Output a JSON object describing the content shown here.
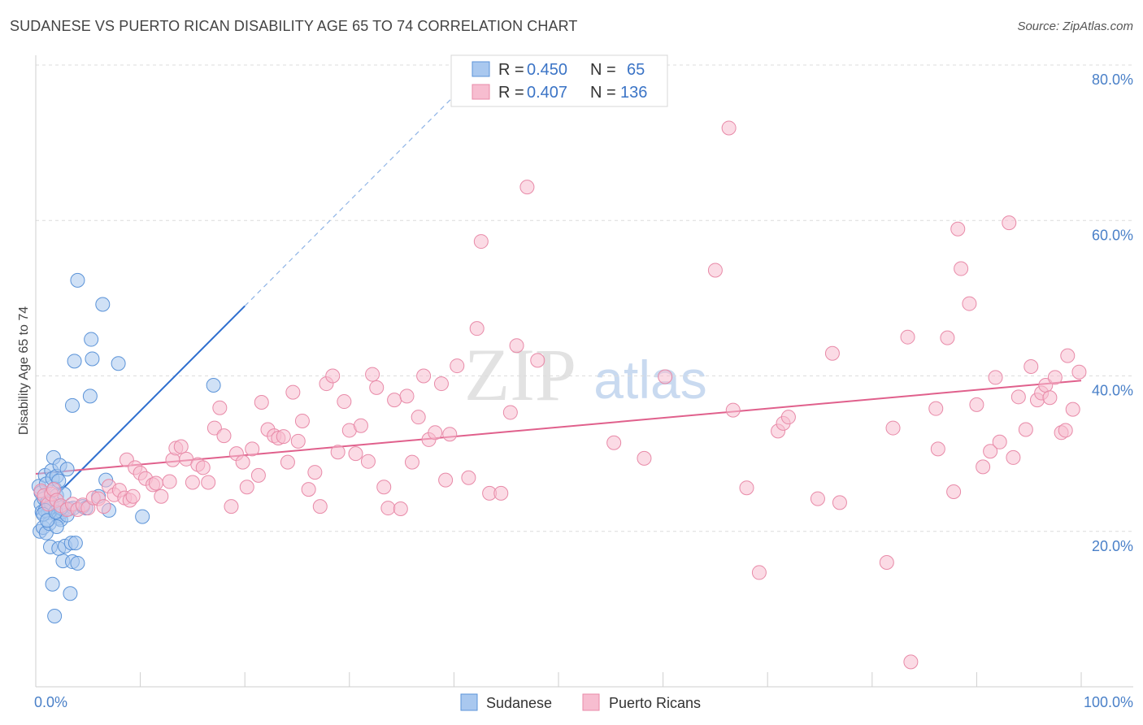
{
  "header": {
    "title": "SUDANESE VS PUERTO RICAN DISABILITY AGE 65 TO 74 CORRELATION CHART",
    "source": "Source: ZipAtlas.com"
  },
  "watermark": {
    "zip": "ZIP",
    "atlas": "atlas"
  },
  "colors": {
    "sudanese_fill": "#a9c8ef",
    "sudanese_stroke": "#5b93d8",
    "sudanese_line": "#2f6fcf",
    "puerto_fill": "#f7bdd0",
    "puerto_stroke": "#e88aa8",
    "puerto_line": "#e0608c",
    "tick_color": "#4a80c8",
    "grid": "#dcdcdc"
  },
  "legend_top": {
    "rows": [
      {
        "r_label": "R =",
        "r_value": "0.450",
        "n_label": "N =",
        "n_value": "65"
      },
      {
        "r_label": "R =",
        "r_value": "0.407",
        "n_label": "N =",
        "n_value": "136"
      }
    ]
  },
  "legend_bottom": {
    "items": [
      "Sudanese",
      "Puerto Ricans"
    ]
  },
  "chart_data": {
    "type": "scatter",
    "title": "SUDANESE VS PUERTO RICAN DISABILITY AGE 65 TO 74 CORRELATION CHART",
    "xlabel": "",
    "ylabel": "Disability Age 65 to 74",
    "xlim": [
      0,
      100
    ],
    "ylim": [
      0,
      80
    ],
    "x_tick_labels": [
      "0.0%",
      "100.0%"
    ],
    "y_ticks": [
      20,
      40,
      60,
      80
    ],
    "y_tick_labels": [
      "20.0%",
      "40.0%",
      "60.0%",
      "80.0%"
    ],
    "grid": true,
    "legend_position": "top-center",
    "series": [
      {
        "name": "Sudanese",
        "R": 0.45,
        "N": 65,
        "trend": {
          "x1": 0,
          "y1": 22.0,
          "x2": 20,
          "y2": 49.0,
          "dash_to_x": 40,
          "dash_to_y": 76.0
        },
        "points": [
          [
            0.3,
            25.8
          ],
          [
            0.5,
            25.0
          ],
          [
            0.5,
            23.5
          ],
          [
            0.6,
            22.5
          ],
          [
            0.8,
            24.2
          ],
          [
            0.9,
            27.2
          ],
          [
            1.0,
            26.1
          ],
          [
            1.1,
            23.7
          ],
          [
            1.2,
            22.4
          ],
          [
            1.3,
            23.1
          ],
          [
            0.4,
            20.0
          ],
          [
            0.7,
            20.5
          ],
          [
            1.0,
            19.8
          ],
          [
            1.4,
            18.0
          ],
          [
            1.5,
            27.8
          ],
          [
            1.6,
            26.8
          ],
          [
            1.8,
            25.5
          ],
          [
            2.0,
            24.6
          ],
          [
            2.1,
            22.0
          ],
          [
            2.2,
            21.7
          ],
          [
            1.7,
            29.5
          ],
          [
            2.0,
            27.1
          ],
          [
            2.2,
            26.5
          ],
          [
            2.3,
            28.5
          ],
          [
            2.5,
            22.5
          ],
          [
            2.6,
            22.8
          ],
          [
            2.7,
            24.8
          ],
          [
            2.4,
            21.5
          ],
          [
            2.6,
            16.2
          ],
          [
            2.2,
            17.8
          ],
          [
            2.8,
            18.1
          ],
          [
            3.0,
            28.0
          ],
          [
            3.2,
            22.9
          ],
          [
            3.4,
            18.5
          ],
          [
            3.6,
            23.0
          ],
          [
            3.5,
            16.1
          ],
          [
            3.3,
            12.0
          ],
          [
            1.6,
            13.2
          ],
          [
            1.8,
            9.1
          ],
          [
            4.0,
            15.9
          ],
          [
            3.8,
            18.5
          ],
          [
            1.3,
            21.0
          ],
          [
            2.0,
            20.6
          ],
          [
            1.5,
            23.5
          ],
          [
            0.9,
            22.7
          ],
          [
            0.7,
            22.2
          ],
          [
            1.1,
            21.4
          ],
          [
            3.0,
            22.1
          ],
          [
            2.4,
            23.0
          ],
          [
            1.9,
            22.5
          ],
          [
            3.5,
            36.2
          ],
          [
            5.2,
            37.4
          ],
          [
            3.7,
            41.9
          ],
          [
            5.4,
            42.2
          ],
          [
            5.3,
            44.7
          ],
          [
            7.9,
            41.6
          ],
          [
            6.4,
            49.2
          ],
          [
            4.0,
            52.3
          ],
          [
            6.7,
            26.6
          ],
          [
            7.0,
            22.7
          ],
          [
            10.2,
            21.9
          ],
          [
            17.0,
            38.8
          ],
          [
            4.5,
            23.2
          ],
          [
            6.0,
            24.5
          ],
          [
            4.8,
            23.0
          ]
        ]
      },
      {
        "name": "Puerto Ricans",
        "R": 0.407,
        "N": 136,
        "trend": {
          "x1": 0,
          "y1": 27.4,
          "x2": 100,
          "y2": 39.4
        },
        "points": [
          [
            0.5,
            25.2
          ],
          [
            0.8,
            24.6
          ],
          [
            1.2,
            23.5
          ],
          [
            1.5,
            24.8
          ],
          [
            1.7,
            25.4
          ],
          [
            2.0,
            24.0
          ],
          [
            2.4,
            23.3
          ],
          [
            3.0,
            22.8
          ],
          [
            3.5,
            23.5
          ],
          [
            4.0,
            22.8
          ],
          [
            4.5,
            23.4
          ],
          [
            5.0,
            23.0
          ],
          [
            5.5,
            24.3
          ],
          [
            6.0,
            24.2
          ],
          [
            6.5,
            23.2
          ],
          [
            7.0,
            25.8
          ],
          [
            7.5,
            24.7
          ],
          [
            8.0,
            25.3
          ],
          [
            8.5,
            24.3
          ],
          [
            9.0,
            24.0
          ],
          [
            9.3,
            24.5
          ],
          [
            8.7,
            29.2
          ],
          [
            9.5,
            28.2
          ],
          [
            10.0,
            27.5
          ],
          [
            10.5,
            26.8
          ],
          [
            11.2,
            26.0
          ],
          [
            11.5,
            26.2
          ],
          [
            12.0,
            24.5
          ],
          [
            12.8,
            26.4
          ],
          [
            13.1,
            29.2
          ],
          [
            13.4,
            30.7
          ],
          [
            13.9,
            30.9
          ],
          [
            14.4,
            29.3
          ],
          [
            15.0,
            26.3
          ],
          [
            15.5,
            28.6
          ],
          [
            16.0,
            28.2
          ],
          [
            16.5,
            26.3
          ],
          [
            17.1,
            33.3
          ],
          [
            17.6,
            35.9
          ],
          [
            18.0,
            32.3
          ],
          [
            18.7,
            23.2
          ],
          [
            19.2,
            30.0
          ],
          [
            19.8,
            28.9
          ],
          [
            20.2,
            25.7
          ],
          [
            20.7,
            30.6
          ],
          [
            21.3,
            27.2
          ],
          [
            21.6,
            36.6
          ],
          [
            22.2,
            33.1
          ],
          [
            22.8,
            32.3
          ],
          [
            23.2,
            32.0
          ],
          [
            23.7,
            32.2
          ],
          [
            24.1,
            28.9
          ],
          [
            24.6,
            37.9
          ],
          [
            25.1,
            31.6
          ],
          [
            25.5,
            34.2
          ],
          [
            26.1,
            25.4
          ],
          [
            26.7,
            27.6
          ],
          [
            27.2,
            23.2
          ],
          [
            27.8,
            39.0
          ],
          [
            28.4,
            40.0
          ],
          [
            28.9,
            30.2
          ],
          [
            29.5,
            36.7
          ],
          [
            30.0,
            33.0
          ],
          [
            30.6,
            30.0
          ],
          [
            31.1,
            33.6
          ],
          [
            31.8,
            29.0
          ],
          [
            32.2,
            40.2
          ],
          [
            32.6,
            38.5
          ],
          [
            33.3,
            25.7
          ],
          [
            33.7,
            23.0
          ],
          [
            34.3,
            36.9
          ],
          [
            34.9,
            22.9
          ],
          [
            35.5,
            37.4
          ],
          [
            36.0,
            28.9
          ],
          [
            36.6,
            34.7
          ],
          [
            37.1,
            40.0
          ],
          [
            37.6,
            31.8
          ],
          [
            38.2,
            32.7
          ],
          [
            38.8,
            39.0
          ],
          [
            39.2,
            26.6
          ],
          [
            39.6,
            32.5
          ],
          [
            40.3,
            41.3
          ],
          [
            41.4,
            26.9
          ],
          [
            42.2,
            46.1
          ],
          [
            42.6,
            57.3
          ],
          [
            43.4,
            24.9
          ],
          [
            44.5,
            24.9
          ],
          [
            45.4,
            35.3
          ],
          [
            46.0,
            43.9
          ],
          [
            47.0,
            64.3
          ],
          [
            48.0,
            42.0
          ],
          [
            55.3,
            31.4
          ],
          [
            58.2,
            29.4
          ],
          [
            60.2,
            39.9
          ],
          [
            65.0,
            53.6
          ],
          [
            66.3,
            71.9
          ],
          [
            66.7,
            35.6
          ],
          [
            68.0,
            25.6
          ],
          [
            69.2,
            14.7
          ],
          [
            71.0,
            32.9
          ],
          [
            71.5,
            33.9
          ],
          [
            72.0,
            34.7
          ],
          [
            74.8,
            24.2
          ],
          [
            76.2,
            42.9
          ],
          [
            76.9,
            23.7
          ],
          [
            81.4,
            16.0
          ],
          [
            82.0,
            33.3
          ],
          [
            83.4,
            45.0
          ],
          [
            83.7,
            3.2
          ],
          [
            86.1,
            35.8
          ],
          [
            86.3,
            30.6
          ],
          [
            87.2,
            44.9
          ],
          [
            87.8,
            25.1
          ],
          [
            88.2,
            58.9
          ],
          [
            88.5,
            53.8
          ],
          [
            89.3,
            49.3
          ],
          [
            90.0,
            36.3
          ],
          [
            90.6,
            28.3
          ],
          [
            91.3,
            30.3
          ],
          [
            91.8,
            39.8
          ],
          [
            92.2,
            31.5
          ],
          [
            93.1,
            59.7
          ],
          [
            93.5,
            29.5
          ],
          [
            94.0,
            37.3
          ],
          [
            94.7,
            33.1
          ],
          [
            95.2,
            41.2
          ],
          [
            95.8,
            36.9
          ],
          [
            96.2,
            37.8
          ],
          [
            96.6,
            38.8
          ],
          [
            97.0,
            37.2
          ],
          [
            97.5,
            39.8
          ],
          [
            98.1,
            32.7
          ],
          [
            98.7,
            42.6
          ],
          [
            99.2,
            35.7
          ],
          [
            99.8,
            40.5
          ],
          [
            98.5,
            33.0
          ]
        ]
      }
    ]
  }
}
